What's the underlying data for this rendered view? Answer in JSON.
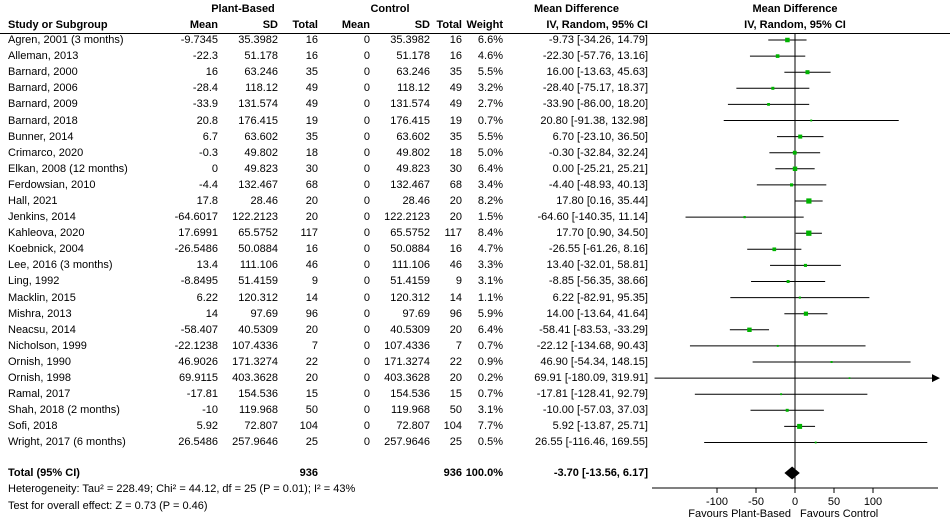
{
  "colors": {
    "marker_green": "#00b300",
    "line_black": "#000000",
    "background": "#ffffff"
  },
  "header": {
    "col_study": "Study or Subgroup",
    "group1": "Plant-Based",
    "group2": "Control",
    "mean": "Mean",
    "sd": "SD",
    "total": "Total",
    "weight": "Weight",
    "md_label": "Mean Difference",
    "md_sub": "IV, Random, 95% CI"
  },
  "totals": {
    "label": "Total (95% CI)",
    "pb_total": "936",
    "c_total": "936",
    "weight": "100.0%",
    "ci_text": "-3.70 [-13.56, 6.17]"
  },
  "footer": {
    "heterogeneity": "Heterogeneity: Tau² = 228.49; Chi² = 44.12, df = 25 (P = 0.01); I² = 43%",
    "overall_effect": "Test for overall effect: Z = 0.73 (P = 0.46)"
  },
  "axis": {
    "favours_left": "Favours Plant-Based",
    "favours_right": "Favours Control"
  },
  "chart_data": {
    "type": "scatter",
    "subtype": "forest-plot",
    "title": "Mean Difference, IV, Random, 95% CI",
    "xticks": [
      -100,
      -50,
      0,
      50,
      100
    ],
    "xlim": [
      -185,
      180
    ],
    "xlabel_left": "Favours Plant-Based",
    "xlabel_right": "Favours Control",
    "grid": false,
    "rows": [
      {
        "study": "Agren, 2001 (3 months)",
        "pb_mean": -9.7345,
        "pb_sd": 35.3982,
        "pb_total": 16,
        "c_mean": 0,
        "c_sd": 35.3982,
        "c_total": 16,
        "weight_pct": 6.6,
        "md": -9.73,
        "ci_low": -34.26,
        "ci_high": 14.79,
        "label": "-9.73 [-34.26, 14.79]"
      },
      {
        "study": "Alleman, 2013",
        "pb_mean": -22.3,
        "pb_sd": 51.178,
        "pb_total": 16,
        "c_mean": 0,
        "c_sd": 51.178,
        "c_total": 16,
        "weight_pct": 4.6,
        "md": -22.3,
        "ci_low": -57.76,
        "ci_high": 13.16,
        "label": "-22.30 [-57.76, 13.16]"
      },
      {
        "study": "Barnard, 2000",
        "pb_mean": 16,
        "pb_sd": 63.246,
        "pb_total": 35,
        "c_mean": 0,
        "c_sd": 63.246,
        "c_total": 35,
        "weight_pct": 5.5,
        "md": 16.0,
        "ci_low": -13.63,
        "ci_high": 45.63,
        "label": "16.00 [-13.63, 45.63]"
      },
      {
        "study": "Barnard, 2006",
        "pb_mean": -28.4,
        "pb_sd": 118.12,
        "pb_total": 49,
        "c_mean": 0,
        "c_sd": 118.12,
        "c_total": 49,
        "weight_pct": 3.2,
        "md": -28.4,
        "ci_low": -75.17,
        "ci_high": 18.37,
        "label": "-28.40 [-75.17, 18.37]"
      },
      {
        "study": "Barnard, 2009",
        "pb_mean": -33.9,
        "pb_sd": 131.574,
        "pb_total": 49,
        "c_mean": 0,
        "c_sd": 131.574,
        "c_total": 49,
        "weight_pct": 2.7,
        "md": -33.9,
        "ci_low": -86.0,
        "ci_high": 18.2,
        "label": "-33.90 [-86.00, 18.20]"
      },
      {
        "study": "Barnard, 2018",
        "pb_mean": 20.8,
        "pb_sd": 176.415,
        "pb_total": 19,
        "c_mean": 0,
        "c_sd": 176.415,
        "c_total": 19,
        "weight_pct": 0.7,
        "md": 20.8,
        "ci_low": -91.38,
        "ci_high": 132.98,
        "label": "20.80 [-91.38, 132.98]"
      },
      {
        "study": "Bunner, 2014",
        "pb_mean": 6.7,
        "pb_sd": 63.602,
        "pb_total": 35,
        "c_mean": 0,
        "c_sd": 63.602,
        "c_total": 35,
        "weight_pct": 5.5,
        "md": 6.7,
        "ci_low": -23.1,
        "ci_high": 36.5,
        "label": "6.70 [-23.10, 36.50]"
      },
      {
        "study": "Crimarco, 2020",
        "pb_mean": -0.3,
        "pb_sd": 49.802,
        "pb_total": 18,
        "c_mean": 0,
        "c_sd": 49.802,
        "c_total": 18,
        "weight_pct": 5.0,
        "md": -0.3,
        "ci_low": -32.84,
        "ci_high": 32.24,
        "label": "-0.30 [-32.84, 32.24]"
      },
      {
        "study": "Elkan, 2008 (12 months)",
        "pb_mean": 0,
        "pb_sd": 49.823,
        "pb_total": 30,
        "c_mean": 0,
        "c_sd": 49.823,
        "c_total": 30,
        "weight_pct": 6.4,
        "md": 0.0,
        "ci_low": -25.21,
        "ci_high": 25.21,
        "label": "0.00 [-25.21, 25.21]"
      },
      {
        "study": "Ferdowsian, 2010",
        "pb_mean": -4.4,
        "pb_sd": 132.467,
        "pb_total": 68,
        "c_mean": 0,
        "c_sd": 132.467,
        "c_total": 68,
        "weight_pct": 3.4,
        "md": -4.4,
        "ci_low": -48.93,
        "ci_high": 40.13,
        "label": "-4.40 [-48.93, 40.13]"
      },
      {
        "study": "Hall, 2021",
        "pb_mean": 17.8,
        "pb_sd": 28.46,
        "pb_total": 20,
        "c_mean": 0,
        "c_sd": 28.46,
        "c_total": 20,
        "weight_pct": 8.2,
        "md": 17.8,
        "ci_low": 0.16,
        "ci_high": 35.44,
        "label": "17.80 [0.16, 35.44]"
      },
      {
        "study": "Jenkins, 2014",
        "pb_mean": -64.6017,
        "pb_sd": 122.2123,
        "pb_total": 20,
        "c_mean": 0,
        "c_sd": 122.2123,
        "c_total": 20,
        "weight_pct": 1.5,
        "md": -64.6,
        "ci_low": -140.35,
        "ci_high": 11.14,
        "label": "-64.60 [-140.35, 11.14]"
      },
      {
        "study": "Kahleova, 2020",
        "pb_mean": 17.6991,
        "pb_sd": 65.5752,
        "pb_total": 117,
        "c_mean": 0,
        "c_sd": 65.5752,
        "c_total": 117,
        "weight_pct": 8.4,
        "md": 17.7,
        "ci_low": 0.9,
        "ci_high": 34.5,
        "label": "17.70 [0.90, 34.50]"
      },
      {
        "study": "Koebnick, 2004",
        "pb_mean": -26.5486,
        "pb_sd": 50.0884,
        "pb_total": 16,
        "c_mean": 0,
        "c_sd": 50.0884,
        "c_total": 16,
        "weight_pct": 4.7,
        "md": -26.55,
        "ci_low": -61.26,
        "ci_high": 8.16,
        "label": "-26.55 [-61.26, 8.16]"
      },
      {
        "study": "Lee, 2016 (3 months)",
        "pb_mean": 13.4,
        "pb_sd": 111.106,
        "pb_total": 46,
        "c_mean": 0,
        "c_sd": 111.106,
        "c_total": 46,
        "weight_pct": 3.3,
        "md": 13.4,
        "ci_low": -32.01,
        "ci_high": 58.81,
        "label": "13.40 [-32.01, 58.81]"
      },
      {
        "study": "Ling, 1992",
        "pb_mean": -8.8495,
        "pb_sd": 51.4159,
        "pb_total": 9,
        "c_mean": 0,
        "c_sd": 51.4159,
        "c_total": 9,
        "weight_pct": 3.1,
        "md": -8.85,
        "ci_low": -56.35,
        "ci_high": 38.66,
        "label": "-8.85 [-56.35, 38.66]"
      },
      {
        "study": "Macklin, 2015",
        "pb_mean": 6.22,
        "pb_sd": 120.312,
        "pb_total": 14,
        "c_mean": 0,
        "c_sd": 120.312,
        "c_total": 14,
        "weight_pct": 1.1,
        "md": 6.22,
        "ci_low": -82.91,
        "ci_high": 95.35,
        "label": "6.22 [-82.91, 95.35]"
      },
      {
        "study": "Mishra, 2013",
        "pb_mean": 14,
        "pb_sd": 97.69,
        "pb_total": 96,
        "c_mean": 0,
        "c_sd": 97.69,
        "c_total": 96,
        "weight_pct": 5.9,
        "md": 14.0,
        "ci_low": -13.64,
        "ci_high": 41.64,
        "label": "14.00 [-13.64, 41.64]"
      },
      {
        "study": "Neacsu, 2014",
        "pb_mean": -58.407,
        "pb_sd": 40.5309,
        "pb_total": 20,
        "c_mean": 0,
        "c_sd": 40.5309,
        "c_total": 20,
        "weight_pct": 6.4,
        "md": -58.41,
        "ci_low": -83.53,
        "ci_high": -33.29,
        "label": "-58.41 [-83.53, -33.29]"
      },
      {
        "study": "Nicholson, 1999",
        "pb_mean": -22.1238,
        "pb_sd": 107.4336,
        "pb_total": 7,
        "c_mean": 0,
        "c_sd": 107.4336,
        "c_total": 7,
        "weight_pct": 0.7,
        "md": -22.12,
        "ci_low": -134.68,
        "ci_high": 90.43,
        "label": "-22.12 [-134.68, 90.43]"
      },
      {
        "study": "Ornish, 1990",
        "pb_mean": 46.9026,
        "pb_sd": 171.3274,
        "pb_total": 22,
        "c_mean": 0,
        "c_sd": 171.3274,
        "c_total": 22,
        "weight_pct": 0.9,
        "md": 46.9,
        "ci_low": -54.34,
        "ci_high": 148.15,
        "label": "46.90 [-54.34, 148.15]"
      },
      {
        "study": "Ornish, 1998",
        "pb_mean": 69.9115,
        "pb_sd": 403.3628,
        "pb_total": 20,
        "c_mean": 0,
        "c_sd": 403.3628,
        "c_total": 20,
        "weight_pct": 0.2,
        "md": 69.91,
        "ci_low": -180.09,
        "ci_high": 319.91,
        "label": "69.91 [-180.09, 319.91]"
      },
      {
        "study": "Ramal, 2017",
        "pb_mean": -17.81,
        "pb_sd": 154.536,
        "pb_total": 15,
        "c_mean": 0,
        "c_sd": 154.536,
        "c_total": 15,
        "weight_pct": 0.7,
        "md": -17.81,
        "ci_low": -128.41,
        "ci_high": 92.79,
        "label": "-17.81 [-128.41, 92.79]"
      },
      {
        "study": "Shah, 2018 (2 months)",
        "pb_mean": -10,
        "pb_sd": 119.968,
        "pb_total": 50,
        "c_mean": 0,
        "c_sd": 119.968,
        "c_total": 50,
        "weight_pct": 3.1,
        "md": -10.0,
        "ci_low": -57.03,
        "ci_high": 37.03,
        "label": "-10.00 [-57.03, 37.03]"
      },
      {
        "study": "Sofi, 2018",
        "pb_mean": 5.92,
        "pb_sd": 72.807,
        "pb_total": 104,
        "c_mean": 0,
        "c_sd": 72.807,
        "c_total": 104,
        "weight_pct": 7.7,
        "md": 5.92,
        "ci_low": -13.87,
        "ci_high": 25.71,
        "label": "5.92 [-13.87, 25.71]"
      },
      {
        "study": "Wright, 2017 (6 months)",
        "pb_mean": 26.5486,
        "pb_sd": 257.9646,
        "pb_total": 25,
        "c_mean": 0,
        "c_sd": 257.9646,
        "c_total": 25,
        "weight_pct": 0.5,
        "md": 26.55,
        "ci_low": -116.46,
        "ci_high": 169.55,
        "label": "26.55 [-116.46, 169.55]"
      }
    ],
    "total": {
      "md": -3.7,
      "ci_low": -13.56,
      "ci_high": 6.17
    }
  }
}
